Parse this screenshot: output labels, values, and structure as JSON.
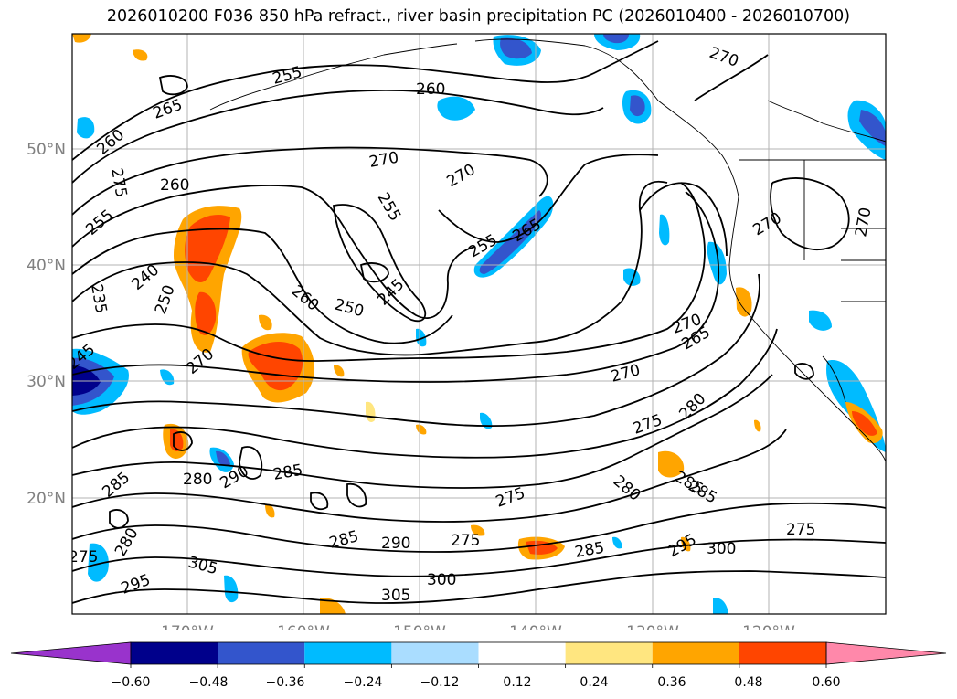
{
  "title": "2026010200 F036 850 hPa refract., river basin precipitation PC (2026010400 - 2026010700)",
  "lat_labels": [
    "50°N",
    "40°N",
    "30°N",
    "20°N"
  ],
  "lon_labels": [
    "170°W",
    "160°W",
    "150°W",
    "140°W",
    "130°W",
    "120°W"
  ],
  "colorbar": {
    "colors": [
      "#9933cc",
      "#00008b",
      "#3355cc",
      "#00bbff",
      "#aaddff",
      "#ffffff",
      "#ffe680",
      "#ffa500",
      "#ff4500",
      "#b22222",
      "#ff88aa"
    ],
    "tick_labels": [
      "−0.60",
      "−0.48",
      "−0.36",
      "−0.24",
      "−0.12",
      "0.12",
      "0.24",
      "0.36",
      "0.48",
      "0.60"
    ]
  },
  "contour_labels": [
    "265",
    "260",
    "275",
    "260",
    "255",
    "240",
    "235",
    "250",
    "245",
    "270",
    "255",
    "260",
    "270",
    "270",
    "255",
    "255",
    "265",
    "260",
    "250",
    "245",
    "270",
    "270",
    "265",
    "270",
    "270",
    "275",
    "280",
    "280",
    "290",
    "285",
    "285",
    "280",
    "285",
    "295",
    "305",
    "275",
    "285",
    "290",
    "275",
    "275",
    "300",
    "305",
    "285",
    "295",
    "300",
    "280",
    "285",
    "275",
    "270",
    "270",
    "275",
    "275",
    "270",
    "265",
    "260",
    "255"
  ]
}
